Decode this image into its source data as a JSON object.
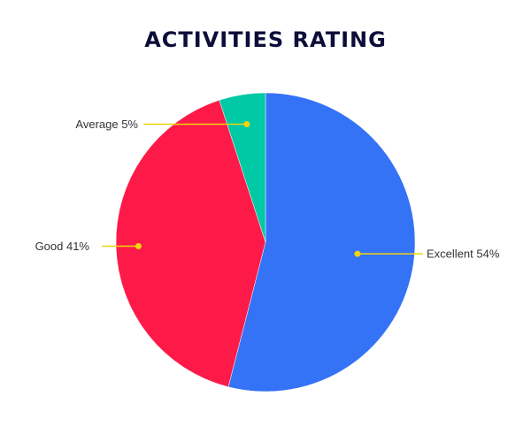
{
  "chart_data": {
    "type": "pie",
    "title": "ACTIVITIES RATING",
    "categories": [
      "Excellent",
      "Good",
      "Average"
    ],
    "values": [
      54,
      41,
      5
    ],
    "labels": [
      "Excellent 54%",
      "Good 41%",
      "Average 5%"
    ],
    "colors": [
      "#3472f6",
      "#fe1a48",
      "#00c9a5"
    ],
    "leader_color": "#f2d40c",
    "legend": "none"
  }
}
